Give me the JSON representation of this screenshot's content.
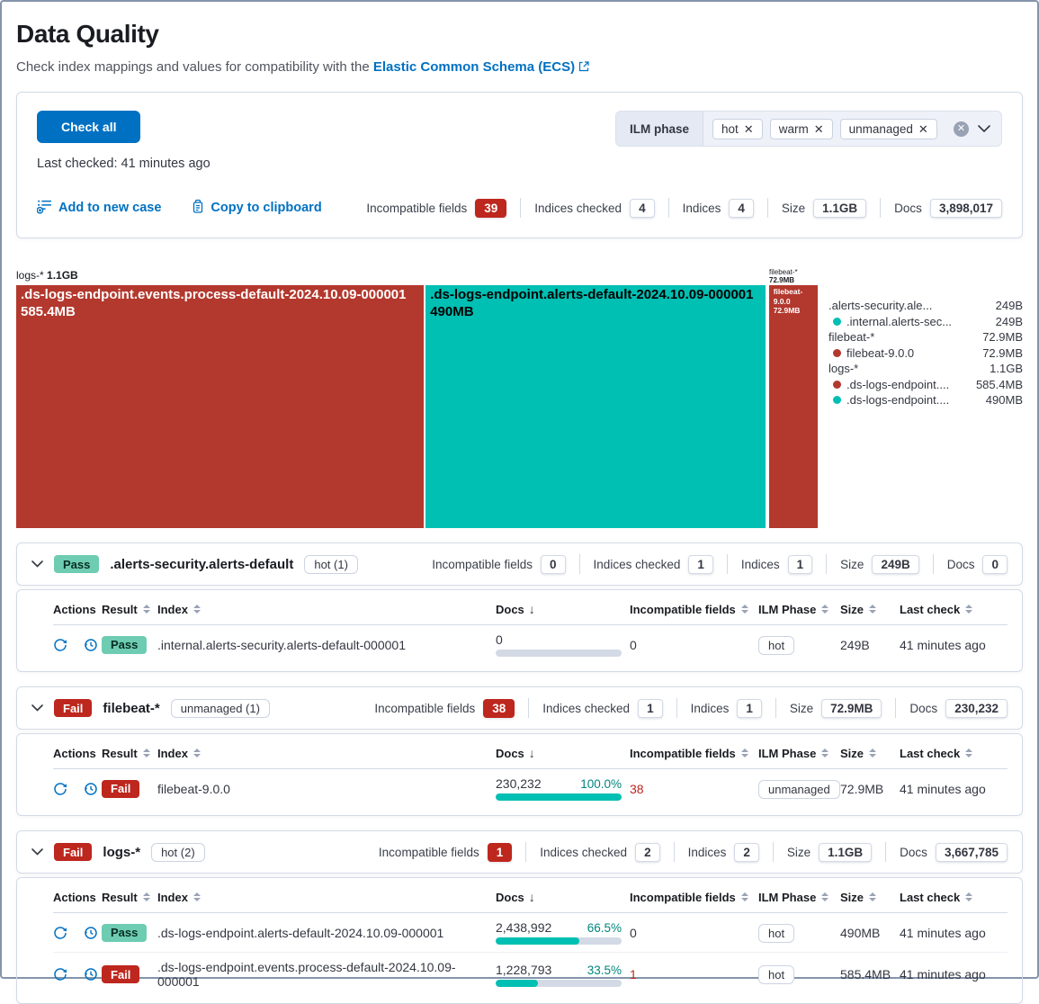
{
  "colors": {
    "primary_blue": "#0071C2",
    "danger_red": "#BD271E",
    "treemap_red": "#B3382D",
    "teal": "#00BFB3",
    "success_badge_bg": "#6DCCB1",
    "percent_teal": "#00857C"
  },
  "header": {
    "title": "Data Quality",
    "subtitle": "Check index mappings and values for compatibility with the",
    "subtitle_link": "Elastic Common Schema (ECS)"
  },
  "controls": {
    "check_all": "Check all",
    "last_checked": "Last checked: 41 minutes ago",
    "ilm_filter": {
      "label": "ILM phase",
      "pills": [
        "hot",
        "warm",
        "unmanaged"
      ]
    },
    "add_case": "Add to new case",
    "copy": "Copy to clipboard",
    "stats": [
      {
        "label": "Incompatible fields",
        "value": "39",
        "variant": "danger"
      },
      {
        "label": "Indices checked",
        "value": "4",
        "variant": "default"
      },
      {
        "label": "Indices",
        "value": "4",
        "variant": "default"
      },
      {
        "label": "Size",
        "value": "1.1GB",
        "variant": "default"
      },
      {
        "label": "Docs",
        "value": "3,898,017",
        "variant": "default"
      }
    ]
  },
  "treemap": {
    "type": "treemap",
    "logs_group": {
      "name": "logs-*",
      "size": "1.1GB"
    },
    "filebeat_group": {
      "name": "filebeat-*",
      "size": "72.9MB"
    },
    "tiles": [
      {
        "label": ".ds-logs-endpoint.events.process-default-2024.10.09-000001",
        "size": "585.4MB",
        "width_pct": 50.9,
        "color": "red"
      },
      {
        "label": ".ds-logs-endpoint.alerts-default-2024.10.09-000001",
        "size": "490MB",
        "width_pct": 42.4,
        "color": "teal"
      },
      {
        "label": "filebeat-9.0.0",
        "size": "72.9MB",
        "width_pct": 6.1,
        "color": "red"
      }
    ],
    "legend": [
      {
        "label": ".alerts-security.ale...",
        "value": "249B",
        "dot": null
      },
      {
        "label": ".internal.alerts-sec...",
        "value": "249B",
        "dot": "teal"
      },
      {
        "label": "filebeat-*",
        "value": "72.9MB",
        "dot": null
      },
      {
        "label": "filebeat-9.0.0",
        "value": "72.9MB",
        "dot": "red"
      },
      {
        "label": "logs-*",
        "value": "1.1GB",
        "dot": null
      },
      {
        "label": ".ds-logs-endpoint....",
        "value": "585.4MB",
        "dot": "red"
      },
      {
        "label": ".ds-logs-endpoint....",
        "value": "490MB",
        "dot": "teal"
      }
    ]
  },
  "table_headers": {
    "actions": "Actions",
    "result": "Result",
    "index": "Index",
    "docs": "Docs",
    "incompatible": "Incompatible fields",
    "ilm": "ILM Phase",
    "size": "Size",
    "last_check": "Last check"
  },
  "sections": [
    {
      "result": "Pass",
      "title": ".alerts-security.alerts-default",
      "pill": "hot (1)",
      "stats": [
        {
          "label": "Incompatible fields",
          "value": "0",
          "variant": "default"
        },
        {
          "label": "Indices checked",
          "value": "1",
          "variant": "default"
        },
        {
          "label": "Indices",
          "value": "1",
          "variant": "default"
        },
        {
          "label": "Size",
          "value": "249B",
          "variant": "default"
        },
        {
          "label": "Docs",
          "value": "0",
          "variant": "default"
        }
      ],
      "rows": [
        {
          "result": "Pass",
          "index": ".internal.alerts-security.alerts-default-000001",
          "docs": "0",
          "docs_pct": "",
          "bar_pct": 0,
          "incompatible": "0",
          "incompatible_danger": false,
          "ilm": "hot",
          "size": "249B",
          "last_check": "41 minutes ago"
        }
      ]
    },
    {
      "result": "Fail",
      "title": "filebeat-*",
      "pill": "unmanaged (1)",
      "stats": [
        {
          "label": "Incompatible fields",
          "value": "38",
          "variant": "danger"
        },
        {
          "label": "Indices checked",
          "value": "1",
          "variant": "default"
        },
        {
          "label": "Indices",
          "value": "1",
          "variant": "default"
        },
        {
          "label": "Size",
          "value": "72.9MB",
          "variant": "default"
        },
        {
          "label": "Docs",
          "value": "230,232",
          "variant": "default"
        }
      ],
      "rows": [
        {
          "result": "Fail",
          "index": "filebeat-9.0.0",
          "docs": "230,232",
          "docs_pct": "100.0%",
          "bar_pct": 100,
          "incompatible": "38",
          "incompatible_danger": true,
          "ilm": "unmanaged",
          "size": "72.9MB",
          "last_check": "41 minutes ago"
        }
      ]
    },
    {
      "result": "Fail",
      "title": "logs-*",
      "pill": "hot (2)",
      "stats": [
        {
          "label": "Incompatible fields",
          "value": "1",
          "variant": "danger"
        },
        {
          "label": "Indices checked",
          "value": "2",
          "variant": "default"
        },
        {
          "label": "Indices",
          "value": "2",
          "variant": "default"
        },
        {
          "label": "Size",
          "value": "1.1GB",
          "variant": "default"
        },
        {
          "label": "Docs",
          "value": "3,667,785",
          "variant": "default"
        }
      ],
      "rows": [
        {
          "result": "Pass",
          "index": ".ds-logs-endpoint.alerts-default-2024.10.09-000001",
          "docs": "2,438,992",
          "docs_pct": "66.5%",
          "bar_pct": 66.5,
          "incompatible": "0",
          "incompatible_danger": false,
          "ilm": "hot",
          "size": "490MB",
          "last_check": "41 minutes ago"
        },
        {
          "result": "Fail",
          "index": ".ds-logs-endpoint.events.process-default-2024.10.09-000001",
          "docs": "1,228,793",
          "docs_pct": "33.5%",
          "bar_pct": 33.5,
          "incompatible": "1",
          "incompatible_danger": true,
          "ilm": "hot",
          "size": "585.4MB",
          "last_check": "41 minutes ago"
        }
      ]
    }
  ]
}
